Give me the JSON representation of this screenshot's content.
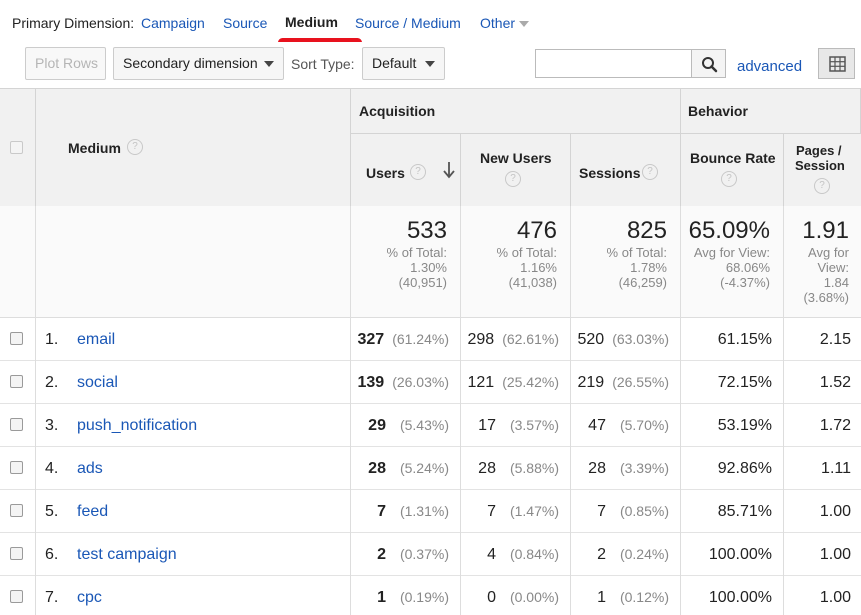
{
  "primary_dimension": {
    "label": "Primary Dimension:",
    "options": [
      "Campaign",
      "Source",
      "Medium",
      "Source / Medium",
      "Other"
    ],
    "selected": "Medium"
  },
  "toolbar": {
    "plot_rows": "Plot Rows",
    "secondary_dimension": "Secondary dimension",
    "sort_type_label": "Sort Type:",
    "sort_type_value": "Default",
    "search_value": "",
    "advanced": "advanced"
  },
  "table": {
    "dimension_header": "Medium",
    "groups": {
      "acquisition": "Acquisition",
      "behavior": "Behavior"
    },
    "columns": {
      "users": "Users",
      "new_users": "New Users",
      "sessions": "Sessions",
      "bounce_rate": "Bounce Rate",
      "pages_session_1": "Pages /",
      "pages_session_2": "Session"
    },
    "totals": {
      "users": {
        "value": "533",
        "line1": "% of Total:",
        "line2": "1.30%",
        "line3": "(40,951)"
      },
      "new_users": {
        "value": "476",
        "line1": "% of Total:",
        "line2": "1.16%",
        "line3": "(41,038)"
      },
      "sessions": {
        "value": "825",
        "line1": "% of Total:",
        "line2": "1.78%",
        "line3": "(46,259)"
      },
      "bounce_rate": {
        "value": "65.09%",
        "line1": "Avg for View:",
        "line2": "68.06%",
        "line3": "(-4.37%)"
      },
      "pages_session": {
        "value": "1.91",
        "line1": "Avg for",
        "line2": "View:",
        "line3": "1.84",
        "line4": "(3.68%)"
      }
    },
    "rows": [
      {
        "num": "1.",
        "medium": "email",
        "users": "327",
        "users_pct": "(61.24%)",
        "new_users": "298",
        "new_users_pct": "(62.61%)",
        "sessions": "520",
        "sessions_pct": "(63.03%)",
        "bounce_rate": "61.15%",
        "pages_session": "2.15"
      },
      {
        "num": "2.",
        "medium": "social",
        "users": "139",
        "users_pct": "(26.03%)",
        "new_users": "121",
        "new_users_pct": "(25.42%)",
        "sessions": "219",
        "sessions_pct": "(26.55%)",
        "bounce_rate": "72.15%",
        "pages_session": "1.52"
      },
      {
        "num": "3.",
        "medium": "push_notification",
        "users": "29",
        "users_pct": "(5.43%)",
        "new_users": "17",
        "new_users_pct": "(3.57%)",
        "sessions": "47",
        "sessions_pct": "(5.70%)",
        "bounce_rate": "53.19%",
        "pages_session": "1.72"
      },
      {
        "num": "4.",
        "medium": "ads",
        "users": "28",
        "users_pct": "(5.24%)",
        "new_users": "28",
        "new_users_pct": "(5.88%)",
        "sessions": "28",
        "sessions_pct": "(3.39%)",
        "bounce_rate": "92.86%",
        "pages_session": "1.11"
      },
      {
        "num": "5.",
        "medium": "feed",
        "users": "7",
        "users_pct": "(1.31%)",
        "new_users": "7",
        "new_users_pct": "(1.47%)",
        "sessions": "7",
        "sessions_pct": "(0.85%)",
        "bounce_rate": "85.71%",
        "pages_session": "1.00"
      },
      {
        "num": "6.",
        "medium": "test campaign",
        "users": "2",
        "users_pct": "(0.37%)",
        "new_users": "4",
        "new_users_pct": "(0.84%)",
        "sessions": "2",
        "sessions_pct": "(0.24%)",
        "bounce_rate": "100.00%",
        "pages_session": "1.00"
      },
      {
        "num": "7.",
        "medium": "cpc",
        "users": "1",
        "users_pct": "(0.19%)",
        "new_users": "0",
        "new_users_pct": "(0.00%)",
        "sessions": "1",
        "sessions_pct": "(0.12%)",
        "bounce_rate": "100.00%",
        "pages_session": "1.00"
      }
    ]
  },
  "colors": {
    "link": "#1a57b6",
    "header_bg": "#f1f1f1",
    "highlight": "#e8121e"
  },
  "icons": {
    "search": "search-icon",
    "grid": "grid-view-icon",
    "help": "help-icon",
    "sort": "sort-down-arrow-icon"
  }
}
